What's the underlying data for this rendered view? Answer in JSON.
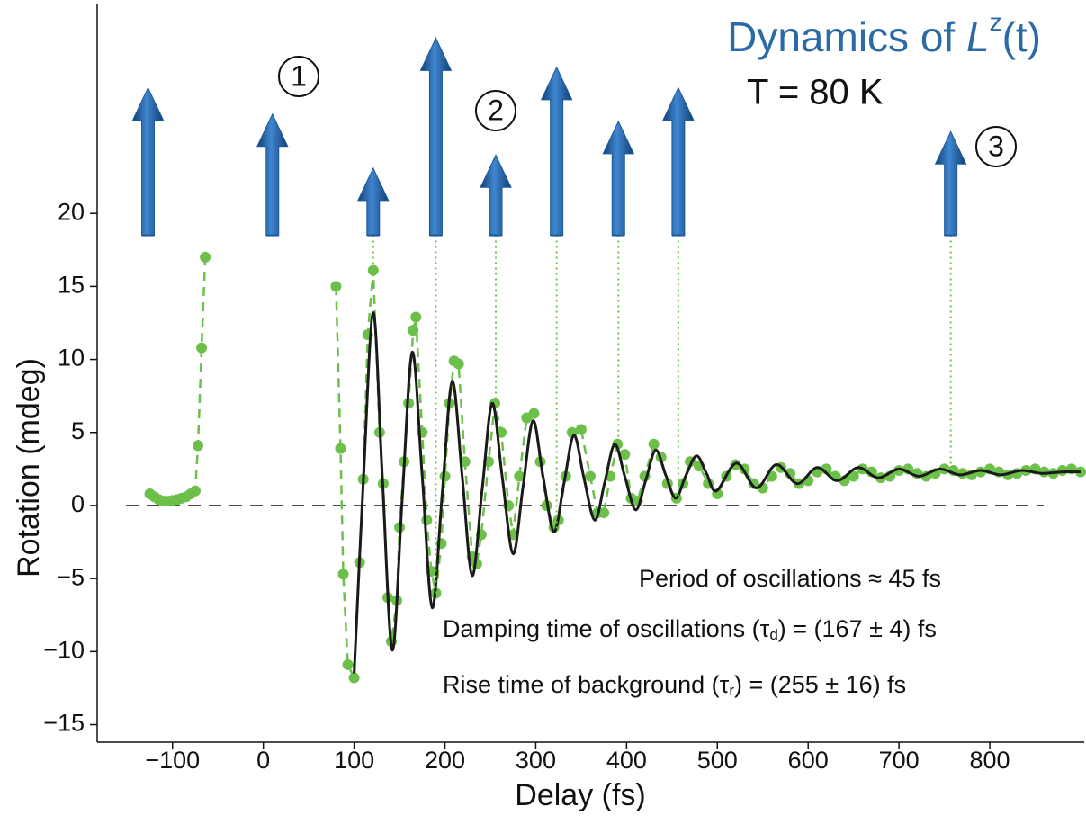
{
  "chart_data": {
    "type": "scatter",
    "title": [
      "Dynamics of ",
      "L",
      "z",
      "(t)"
    ],
    "subtitle": "T = 80 K",
    "x_label": "Delay (fs)",
    "y_label": "Rotation (mdeg)",
    "markers": [
      "1",
      "2",
      "3"
    ],
    "annotations": [
      [
        "Period of oscillations ≈ 45 fs"
      ],
      [
        "Damping time of oscillations (τ",
        "d",
        ") = (167 ± 4) fs"
      ],
      [
        "Rise time of background (τ",
        "r",
        ") = (255 ± 16) fs"
      ]
    ],
    "xlim": [
      -183,
      904
    ],
    "ylim": [
      -16.2,
      34.3
    ],
    "xticks": [
      {
        "value": -100,
        "label": "−100"
      },
      0,
      100,
      200,
      300,
      400,
      500,
      600,
      700,
      800
    ],
    "yticks": [
      {
        "value": -15,
        "label": "−15"
      },
      {
        "value": -10,
        "label": "−10"
      },
      {
        "value": -5,
        "label": "−5"
      },
      0,
      5,
      10,
      15,
      20
    ],
    "series": [
      {
        "color": "#6cc04a",
        "style": "dashed-points",
        "x": [
          -125,
          -120,
          -115,
          -110,
          -105,
          -100,
          -95,
          -90,
          -85,
          -80,
          -75,
          -72,
          -68,
          -64,
          10,
          80,
          85,
          88,
          93,
          100,
          106,
          110,
          115,
          121,
          128,
          132,
          137,
          141,
          147,
          150,
          155,
          160,
          165,
          168,
          175,
          180,
          185,
          190,
          196,
          200,
          205,
          210,
          215,
          222,
          230,
          235,
          240,
          248,
          255,
          262,
          270,
          275,
          282,
          290,
          298,
          305,
          312,
          320,
          325,
          333,
          340,
          350,
          360,
          368,
          375,
          382,
          390,
          398,
          405,
          412,
          420,
          430,
          438,
          445,
          455,
          462,
          470,
          480,
          490,
          500,
          510,
          520,
          530,
          540,
          550,
          560,
          570,
          580,
          590,
          600,
          610,
          620,
          630,
          640,
          650,
          660,
          670,
          680,
          690,
          700,
          710,
          720,
          730,
          740,
          750,
          760,
          770,
          780,
          790,
          800,
          810,
          820,
          830,
          840,
          850,
          860,
          870,
          880,
          890,
          900
        ],
        "values": [
          0.8,
          0.6,
          0.4,
          0.3,
          0.3,
          0.35,
          0.4,
          0.5,
          0.6,
          0.8,
          1.0,
          4.1,
          10.8,
          17,
          null,
          15,
          3.9,
          -4.7,
          -10.9,
          -11.8,
          -3.9,
          1.8,
          11.7,
          16.1,
          5,
          1.5,
          -6.3,
          -9.3,
          -6.5,
          -1.5,
          3,
          7,
          12,
          12.9,
          5,
          -1,
          -4.5,
          -6,
          -2.6,
          2,
          7,
          9.9,
          9.7,
          3,
          -3.5,
          -4,
          -2,
          3,
          7,
          5,
          0,
          -2,
          2,
          6,
          6.3,
          3,
          0,
          -1.5,
          -1,
          2,
          5,
          5.2,
          2,
          -0.5,
          -0.5,
          2,
          4.2,
          3.5,
          0.5,
          0.3,
          2,
          4.2,
          3.3,
          1.5,
          0.5,
          1.5,
          3,
          2.7,
          1.5,
          0.8,
          2,
          2.8,
          2.5,
          1.5,
          1.2,
          2,
          2.6,
          2.2,
          1.5,
          1.7,
          2.3,
          2.5,
          2,
          1.7,
          2,
          2.5,
          2.3,
          1.9,
          2,
          2.4,
          2.5,
          2.2,
          2,
          2.2,
          2.5,
          2.4,
          2.2,
          2.1,
          2.3,
          2.5,
          2.3,
          2.1,
          2.2,
          2.4,
          2.5,
          2.3,
          2.2,
          2.4,
          2.5,
          2.3
        ]
      },
      {
        "color": "#1a1a1a",
        "style": "line",
        "x": [
          100,
          110,
          121,
          131,
          142,
          153,
          164,
          175,
          186,
          197,
          208,
          219,
          230,
          241,
          252,
          263,
          275,
          286,
          297,
          308,
          320,
          331,
          342,
          353,
          365,
          376,
          387,
          398,
          410,
          421,
          432,
          443,
          454,
          465,
          477,
          488,
          499,
          521,
          543,
          565,
          588,
          610,
          632,
          655,
          677,
          700,
          722,
          745,
          767,
          790,
          812,
          835,
          857,
          880,
          900
        ],
        "values": [
          -11.5,
          1.5,
          13.2,
          2,
          -9.9,
          0.5,
          10.5,
          2,
          -7,
          0.8,
          8.5,
          2,
          -4.8,
          1.1,
          7,
          2,
          -3.3,
          1.3,
          5.8,
          2,
          -1.8,
          1.5,
          4.8,
          1.9,
          -1,
          1.6,
          4.2,
          2,
          -0.3,
          1.7,
          3.8,
          2.1,
          0.5,
          2,
          3.4,
          2.2,
          1,
          2.9,
          1.2,
          2.8,
          1.5,
          2.6,
          1.7,
          2.6,
          1.9,
          2.5,
          2,
          2.5,
          2.1,
          2.4,
          2.1,
          2.4,
          2.2,
          2.3,
          2.3
        ]
      }
    ],
    "arrow_color": "#1f5b9c",
    "arrow_base": 18.5,
    "arrows": [
      {
        "x": -127,
        "tip": 28.6,
        "drop": null
      },
      {
        "x": 10,
        "tip": 26.8,
        "drop": null
      },
      {
        "x": 121,
        "tip": 23.1,
        "drop": 16.1
      },
      {
        "x": 190,
        "tip": 32.0,
        "drop": -6
      },
      {
        "x": 256,
        "tip": 24.0,
        "drop": 7
      },
      {
        "x": 323,
        "tip": 30.0,
        "drop": -1.8
      },
      {
        "x": 391,
        "tip": 26.3,
        "drop": 4.2
      },
      {
        "x": 457,
        "tip": 28.6,
        "drop": 0.5
      },
      {
        "x": 757,
        "tip": 25.6,
        "drop": 2.4
      }
    ]
  }
}
